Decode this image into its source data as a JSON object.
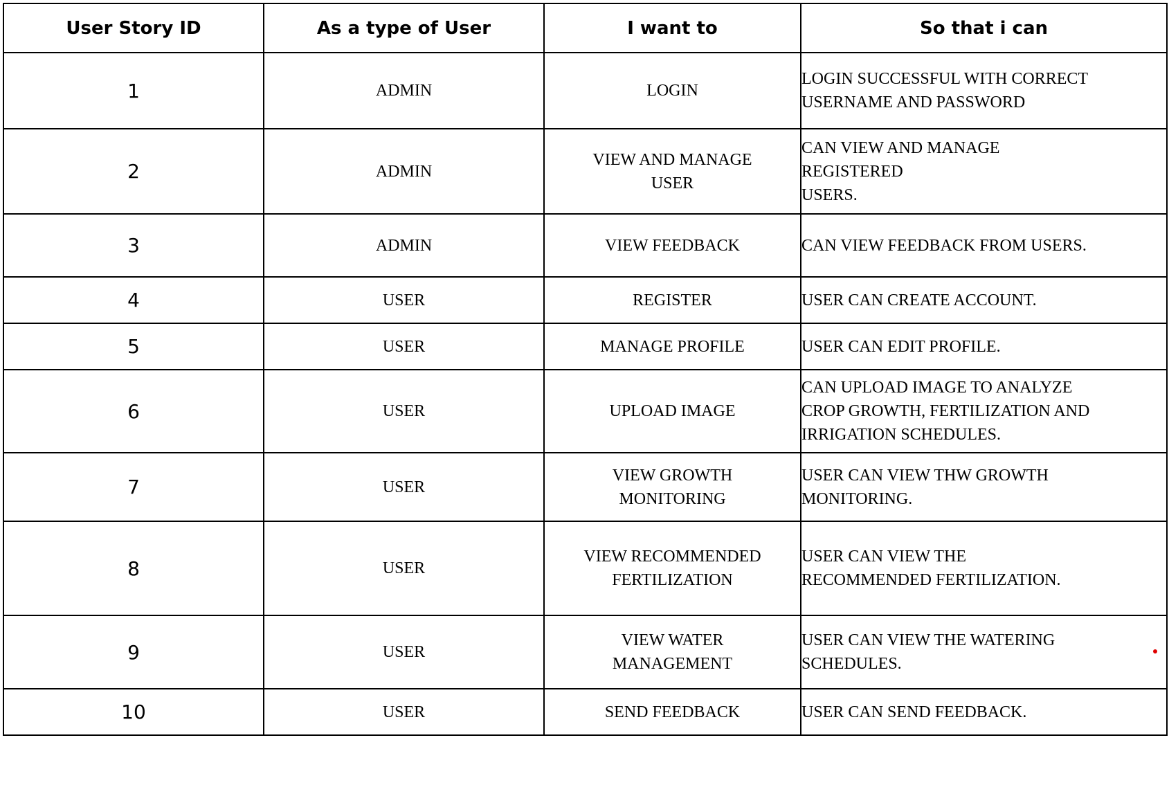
{
  "table": {
    "headers": [
      "User Story ID",
      "As a type of User",
      "I want to",
      "So that i can"
    ],
    "rows": [
      {
        "id": "1",
        "user_type": "ADMIN",
        "want": "LOGIN",
        "goal": "LOGIN SUCCESSFUL WITH CORRECT\nUSERNAME AND PASSWORD"
      },
      {
        "id": "2",
        "user_type": "ADMIN",
        "want": "VIEW AND MANAGE\nUSER",
        "goal": "CAN VIEW AND MANAGE\nREGISTERED\nUSERS."
      },
      {
        "id": "3",
        "user_type": "ADMIN",
        "want": "VIEW FEEDBACK",
        "goal": "CAN VIEW FEEDBACK FROM USERS."
      },
      {
        "id": "4",
        "user_type": "USER",
        "want": "REGISTER",
        "goal": "USER CAN CREATE ACCOUNT."
      },
      {
        "id": "5",
        "user_type": "USER",
        "want": "MANAGE PROFILE",
        "goal": "USER CAN EDIT PROFILE."
      },
      {
        "id": "6",
        "user_type": "USER",
        "want": "UPLOAD IMAGE",
        "goal": "CAN UPLOAD IMAGE TO ANALYZE\nCROP GROWTH, FERTILIZATION AND\nIRRIGATION SCHEDULES."
      },
      {
        "id": "7",
        "user_type": "USER",
        "want": "VIEW GROWTH\nMONITORING",
        "goal": "USER CAN VIEW THW GROWTH\nMONITORING."
      },
      {
        "id": "8",
        "user_type": "USER",
        "want": "VIEW RECOMMENDED\nFERTILIZATION",
        "goal": "USER CAN VIEW THE\nRECOMMENDED FERTILIZATION."
      },
      {
        "id": "9",
        "user_type": "USER",
        "want": "VIEW WATER\nMANAGEMENT",
        "goal": "USER CAN VIEW THE WATERING\nSCHEDULES."
      },
      {
        "id": "10",
        "user_type": "USER",
        "want": "SEND FEEDBACK",
        "goal": "USER CAN SEND FEEDBACK."
      }
    ]
  },
  "colors": {
    "border": "#000000",
    "text": "#000000",
    "background": "#ffffff",
    "marker_dot": "#e00000"
  }
}
